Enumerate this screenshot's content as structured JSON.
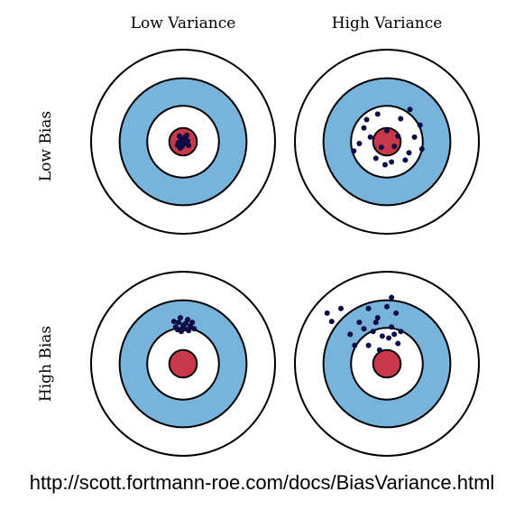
{
  "columns": [
    "Low Variance",
    "High Variance"
  ],
  "rows": [
    "Low Bias",
    "High Bias"
  ],
  "url": "http://scott.fortmann-roe.com/docs/BiasVariance.html",
  "colors": {
    "ring_outline": "#000000",
    "outer_ring": "#ffffff",
    "blue_ring": "#78b3dc",
    "inner_ring": "#ffffff",
    "bullseye": "#c8384a",
    "dot": "#0b0c45"
  },
  "targets": [
    {
      "name": "low-bias-low-variance",
      "hits": [
        [
          -0.02,
          -0.03
        ],
        [
          0.02,
          -0.05
        ],
        [
          -0.05,
          0.01
        ],
        [
          0.03,
          0.02
        ],
        [
          -0.01,
          0.05
        ],
        [
          0.05,
          -0.01
        ],
        [
          -0.04,
          -0.06
        ],
        [
          0.06,
          0.04
        ],
        [
          -0.06,
          0.04
        ],
        [
          0.0,
          0.0
        ],
        [
          0.04,
          -0.07
        ],
        [
          -0.03,
          0.07
        ]
      ]
    },
    {
      "name": "low-bias-high-variance",
      "hits": [
        [
          -0.22,
          -0.24
        ],
        [
          -0.1,
          -0.3
        ],
        [
          0.25,
          -0.35
        ],
        [
          0.36,
          -0.18
        ],
        [
          -0.3,
          0.02
        ],
        [
          0.15,
          -0.25
        ],
        [
          0.0,
          -0.12
        ],
        [
          -0.06,
          0.06
        ],
        [
          0.08,
          0.05
        ],
        [
          -0.12,
          0.18
        ],
        [
          0.2,
          0.2
        ],
        [
          0.3,
          -0.05
        ],
        [
          -0.36,
          0.1
        ],
        [
          0.05,
          0.22
        ],
        [
          -0.18,
          -0.05
        ],
        [
          0.12,
          -0.06
        ],
        [
          0.38,
          0.08
        ],
        [
          -0.02,
          0.25
        ],
        [
          0.24,
          0.12
        ],
        [
          -0.25,
          -0.15
        ]
      ]
    },
    {
      "name": "high-bias-low-variance",
      "hits": [
        [
          -0.05,
          -0.45
        ],
        [
          0.0,
          -0.42
        ],
        [
          0.05,
          -0.48
        ],
        [
          -0.08,
          -0.4
        ],
        [
          0.08,
          -0.41
        ],
        [
          0.02,
          -0.38
        ],
        [
          -0.03,
          -0.5
        ],
        [
          0.1,
          -0.45
        ],
        [
          -0.1,
          -0.46
        ],
        [
          0.06,
          -0.36
        ],
        [
          -0.02,
          -0.35
        ],
        [
          0.12,
          -0.38
        ],
        [
          0.03,
          -0.44
        ],
        [
          -0.06,
          -0.37
        ]
      ]
    },
    {
      "name": "high-bias-high-variance",
      "hits": [
        [
          -0.65,
          -0.55
        ],
        [
          -0.5,
          -0.6
        ],
        [
          -0.3,
          -0.45
        ],
        [
          -0.2,
          -0.6
        ],
        [
          -0.1,
          -0.5
        ],
        [
          0.0,
          -0.62
        ],
        [
          0.05,
          -0.72
        ],
        [
          0.1,
          -0.55
        ],
        [
          -0.25,
          -0.38
        ],
        [
          -0.15,
          -0.35
        ],
        [
          -0.05,
          -0.3
        ],
        [
          0.05,
          -0.4
        ],
        [
          0.12,
          -0.22
        ],
        [
          -0.35,
          -0.2
        ],
        [
          -0.2,
          -0.2
        ],
        [
          -0.08,
          -0.15
        ],
        [
          0.02,
          -0.28
        ],
        [
          -0.4,
          -0.32
        ],
        [
          0.15,
          -0.35
        ],
        [
          -0.12,
          -0.45
        ],
        [
          -0.6,
          -0.46
        ],
        [
          0.08,
          -0.32
        ]
      ]
    }
  ]
}
